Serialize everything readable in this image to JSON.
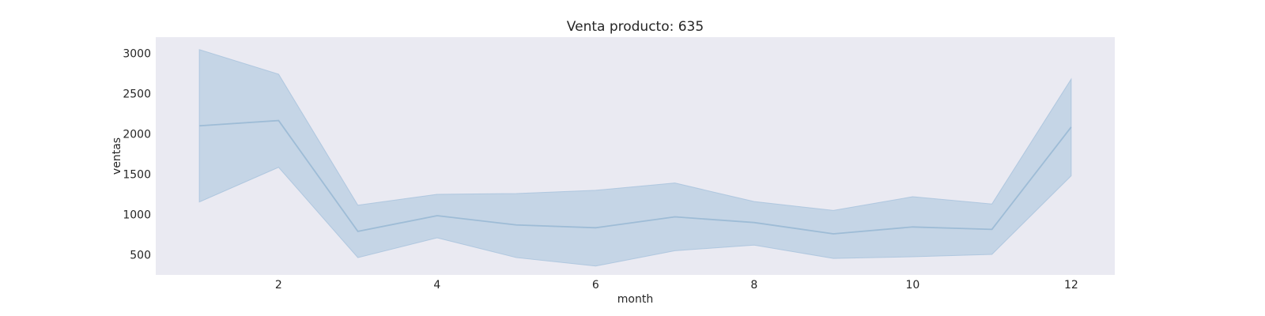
{
  "chart_data": {
    "type": "line",
    "title": "Venta producto: 635",
    "xlabel": "month",
    "ylabel": "ventas",
    "x": [
      1,
      2,
      3,
      4,
      5,
      6,
      7,
      8,
      9,
      10,
      11,
      12
    ],
    "xlim": [
      0.45,
      12.55
    ],
    "ylim": [
      250,
      3200
    ],
    "xticks": [
      2,
      4,
      6,
      8,
      10,
      12
    ],
    "yticks": [
      500,
      1000,
      1500,
      2000,
      2500,
      3000
    ],
    "grid": false,
    "background": "#eaeaf2",
    "series": [
      {
        "values": [
          2100,
          2165,
          790,
          985,
          870,
          835,
          970,
          900,
          760,
          845,
          815,
          2085
        ],
        "ci_upper": [
          3045,
          2740,
          1115,
          1250,
          1260,
          1300,
          1390,
          1160,
          1050,
          1220,
          1130,
          2680
        ],
        "ci_lower": [
          1155,
          1585,
          465,
          710,
          465,
          360,
          550,
          620,
          455,
          475,
          505,
          1480
        ],
        "line_color": "#9ebcd6",
        "band_color": "#a6c2dc"
      }
    ]
  }
}
